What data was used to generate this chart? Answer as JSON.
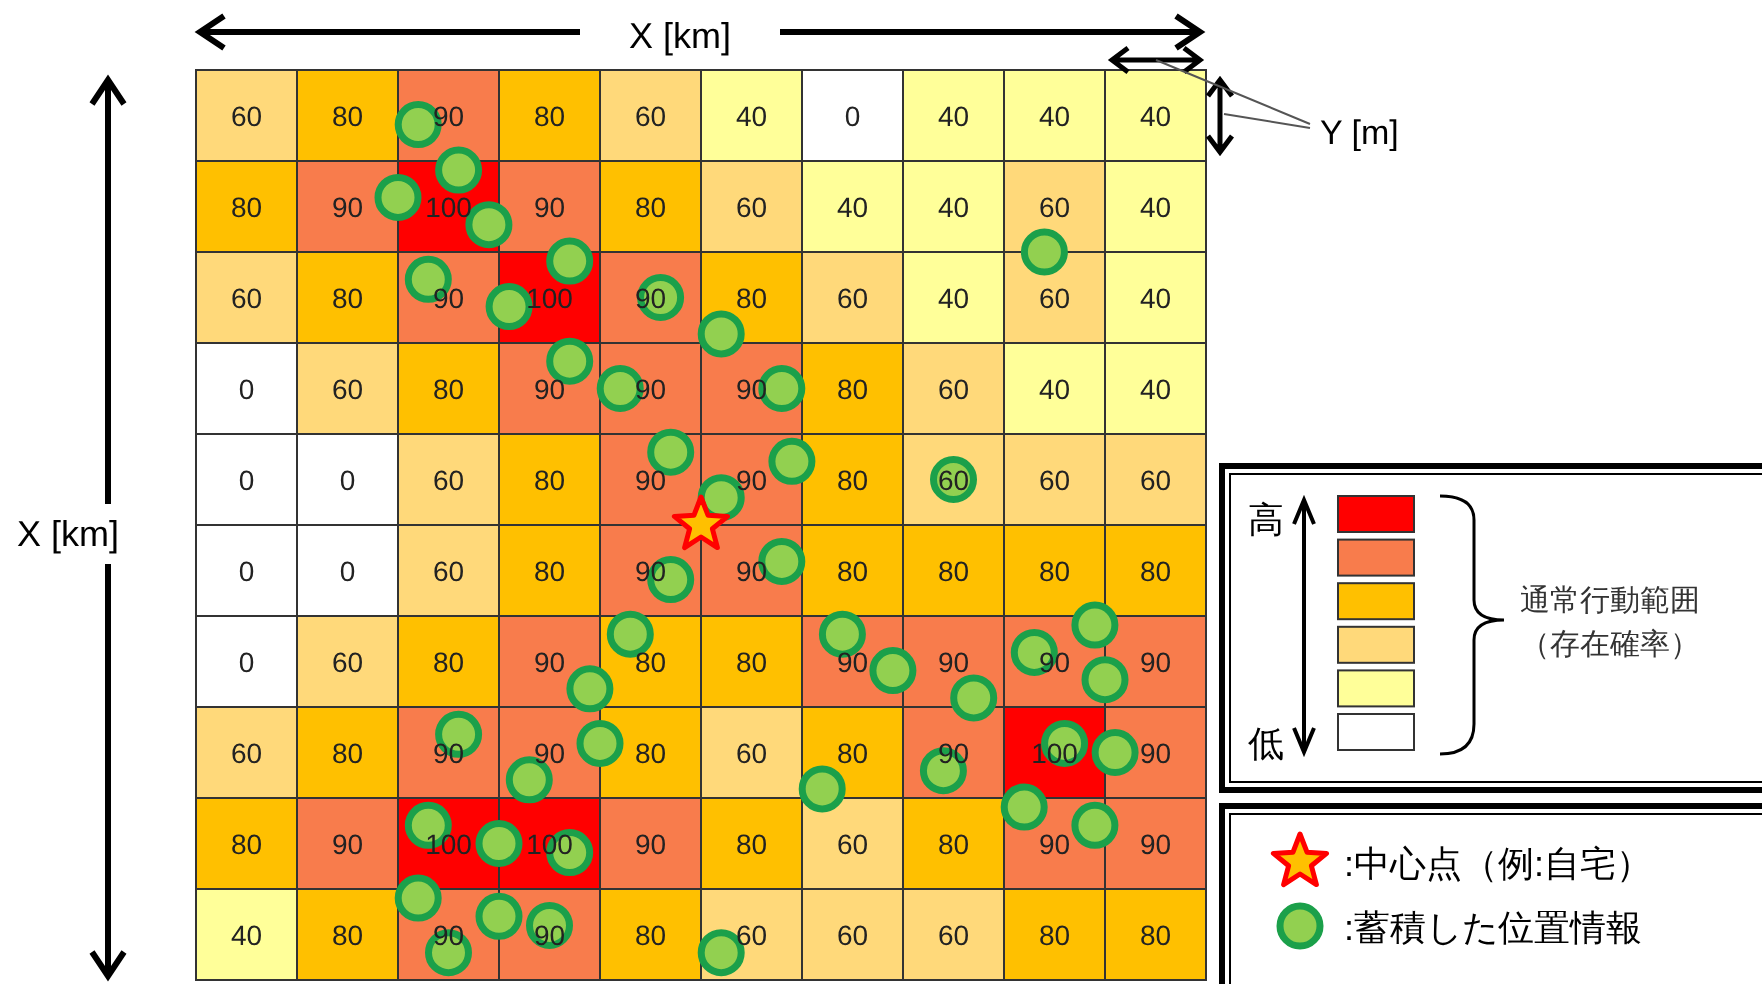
{
  "chart_data": {
    "type": "heatmap",
    "xlabel": "X [km]",
    "ylabel": "X [km]",
    "categories": [
      null,
      null,
      null,
      null,
      null,
      null,
      null,
      null,
      null,
      null
    ],
    "y_categories": [
      null,
      null,
      null,
      null,
      null,
      null,
      null,
      null,
      null,
      null
    ],
    "cells": [
      [
        60,
        80,
        90,
        80,
        60,
        40,
        0,
        40,
        40,
        40
      ],
      [
        80,
        90,
        100,
        90,
        80,
        60,
        40,
        40,
        60,
        40
      ],
      [
        60,
        80,
        90,
        100,
        90,
        80,
        60,
        40,
        60,
        40
      ],
      [
        0,
        60,
        80,
        90,
        90,
        90,
        80,
        60,
        40,
        40
      ],
      [
        0,
        0,
        60,
        80,
        90,
        90,
        80,
        60,
        60,
        60
      ],
      [
        0,
        0,
        60,
        80,
        90,
        90,
        80,
        80,
        80,
        80
      ],
      [
        0,
        60,
        80,
        90,
        80,
        80,
        90,
        90,
        90,
        90
      ],
      [
        60,
        80,
        90,
        90,
        80,
        60,
        80,
        90,
        100,
        90
      ],
      [
        80,
        90,
        100,
        100,
        90,
        80,
        60,
        80,
        90,
        90
      ],
      [
        40,
        80,
        90,
        90,
        80,
        60,
        60,
        60,
        80,
        80
      ]
    ],
    "colors": [
      "#ff0000",
      "#f87c4c",
      "#ffc000",
      "#ffd97a",
      "#ffff99",
      "#ffffff"
    ],
    "clabel": "通常行動範囲",
    "data_labels": true,
    "annotations": [
      "Y [m]",
      "高",
      "低",
      "（存在確率）",
      ":中心点（例:自宅）",
      ":蓄積した位置情報"
    ]
  }
}
